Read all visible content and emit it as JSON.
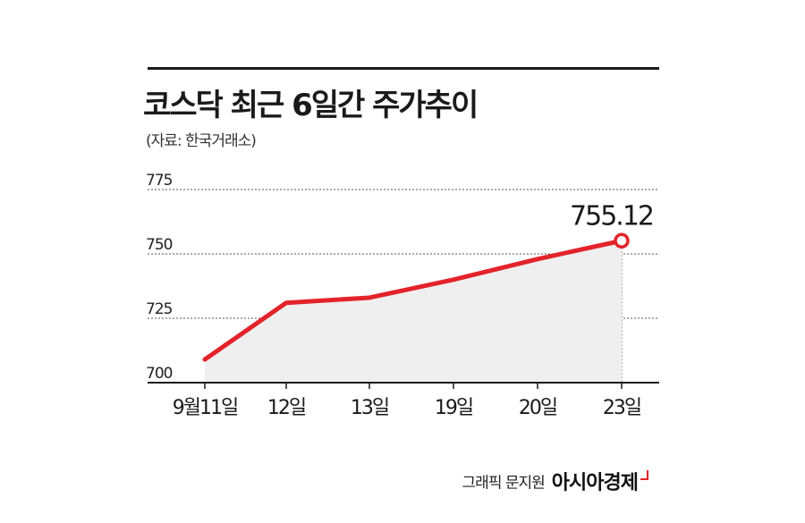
{
  "title": "코스닥 최근 6일간 주가추이",
  "source": "(자료: 한국거래소)",
  "credit": {
    "text": "그래픽 문지원",
    "brand": "아시아경제"
  },
  "colors": {
    "line": "#e3232a",
    "area": "#efefef",
    "grid": "#555555",
    "text": "#1a1a1a"
  },
  "chart_data": {
    "type": "area",
    "categories": [
      "9월11일",
      "12일",
      "13일",
      "19일",
      "20일",
      "23일"
    ],
    "series": [
      {
        "values": [
          709,
          731,
          733,
          740,
          748,
          755.12
        ]
      }
    ],
    "ylim": [
      700,
      775
    ],
    "yticks": [
      "700",
      "725",
      "750",
      "775"
    ],
    "annotation": {
      "index": 5,
      "text": "755.12"
    },
    "grid": "dotted-horizontal"
  }
}
